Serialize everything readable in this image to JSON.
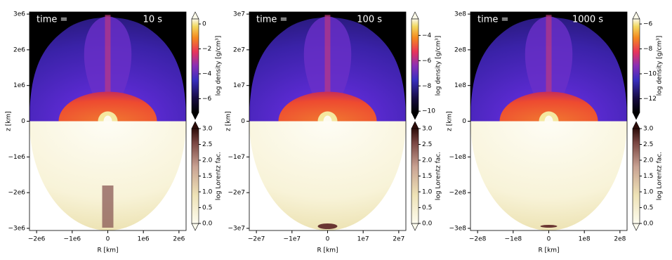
{
  "chart_data": [
    {
      "type": "heatmap",
      "title": "time =",
      "annotation": "10 s",
      "xlabel": "R [km]",
      "ylabel": "z [km]",
      "xlim": [
        -2200000,
        2200000
      ],
      "ylim": [
        -3060000,
        3060000
      ],
      "xticks": [
        {
          "value": -2000000,
          "label": "−2e6"
        },
        {
          "value": -1000000,
          "label": "−1e6"
        },
        0,
        {
          "value": 1000000,
          "label": "1e6"
        },
        {
          "value": 2000000,
          "label": "2e6"
        }
      ],
      "yticks": [
        {
          "value": -3000000,
          "label": "−3e6"
        },
        {
          "value": -2000000,
          "label": "−2e6"
        },
        {
          "value": -1000000,
          "label": "−1e6"
        },
        0,
        {
          "value": 1000000,
          "label": "1e6"
        },
        {
          "value": 2000000,
          "label": "2e6"
        },
        {
          "value": 3000000,
          "label": "3e6"
        }
      ],
      "colorbars": [
        {
          "label": "log density [g/cm³]",
          "clim": [
            -7.1,
            0.4
          ],
          "ticks": [
            {
              "value": -6,
              "label": "−6"
            },
            {
              "value": -4,
              "label": "−4"
            },
            {
              "value": -2,
              "label": "−2"
            },
            0
          ]
        },
        {
          "label": "log Lorentz fac.",
          "clim": [
            0,
            3
          ],
          "ticks": [
            {
              "value": 0,
              "label": "0.0"
            },
            0.5,
            {
              "value": 1,
              "label": "1.0"
            },
            1.5,
            {
              "value": 2,
              "label": "2.0"
            },
            2.5,
            {
              "value": 3,
              "label": "3.0"
            }
          ]
        }
      ]
    },
    {
      "type": "heatmap",
      "title": "time =",
      "annotation": "100 s",
      "xlabel": "R [km]",
      "ylabel": "z [km]",
      "xlim": [
        -22000000,
        22000000
      ],
      "ylim": [
        -30600000,
        30600000
      ],
      "xticks": [
        {
          "value": -20000000,
          "label": "−2e7"
        },
        {
          "value": -10000000,
          "label": "−1e7"
        },
        0,
        {
          "value": 10000000,
          "label": "1e7"
        },
        {
          "value": 20000000,
          "label": "2e7"
        }
      ],
      "yticks": [
        {
          "value": -30000000,
          "label": "−3e7"
        },
        {
          "value": -20000000,
          "label": "−2e7"
        },
        {
          "value": -10000000,
          "label": "−1e7"
        },
        0,
        {
          "value": 10000000,
          "label": "1e7"
        },
        {
          "value": 20000000,
          "label": "2e7"
        },
        {
          "value": 30000000,
          "label": "3e7"
        }
      ],
      "colorbars": [
        {
          "label": "log density [g/cm³]",
          "clim": [
            -10.1,
            -2.7
          ],
          "ticks": [
            {
              "value": -10,
              "label": "−10"
            },
            {
              "value": -8,
              "label": "−8"
            },
            {
              "value": -6,
              "label": "−6"
            },
            {
              "value": -4,
              "label": "−4"
            }
          ]
        },
        {
          "label": "log Lorentz fac.",
          "clim": [
            0,
            3
          ],
          "ticks": [
            {
              "value": 0,
              "label": "0.0"
            },
            0.5,
            {
              "value": 1,
              "label": "1.0"
            },
            1.5,
            {
              "value": 2,
              "label": "2.0"
            },
            2.5,
            {
              "value": 3,
              "label": "3.0"
            }
          ]
        }
      ]
    },
    {
      "type": "heatmap",
      "title": "time =",
      "annotation": "1000 s",
      "xlabel": "R [km]",
      "ylabel": "z [km]",
      "xlim": [
        -220000000,
        220000000
      ],
      "ylim": [
        -306000000,
        306000000
      ],
      "xticks": [
        {
          "value": -200000000,
          "label": "−2e8"
        },
        {
          "value": -100000000,
          "label": "−1e8"
        },
        0,
        {
          "value": 100000000,
          "label": "1e8"
        },
        {
          "value": 200000000,
          "label": "2e8"
        }
      ],
      "yticks": [
        {
          "value": -300000000,
          "label": "−3e8"
        },
        {
          "value": -200000000,
          "label": "−2e8"
        },
        {
          "value": -100000000,
          "label": "−1e8"
        },
        0,
        {
          "value": 100000000,
          "label": "1e8"
        },
        {
          "value": 200000000,
          "label": "2e8"
        },
        {
          "value": 300000000,
          "label": "3e8"
        }
      ],
      "colorbars": [
        {
          "label": "log density [g/cm³]",
          "clim": [
            -13.1,
            -5.6
          ],
          "ticks": [
            {
              "value": -12,
              "label": "−12"
            },
            {
              "value": -10,
              "label": "−10"
            },
            {
              "value": -8,
              "label": "−8"
            },
            {
              "value": -6,
              "label": "−6"
            }
          ]
        },
        {
          "label": "log Lorentz fac.",
          "clim": [
            0,
            3
          ],
          "ticks": [
            {
              "value": 0,
              "label": "0.0"
            },
            0.5,
            {
              "value": 1,
              "label": "1.0"
            },
            1.5,
            {
              "value": 2,
              "label": "2.0"
            },
            2.5,
            {
              "value": 3,
              "label": "3.0"
            }
          ]
        }
      ]
    }
  ]
}
